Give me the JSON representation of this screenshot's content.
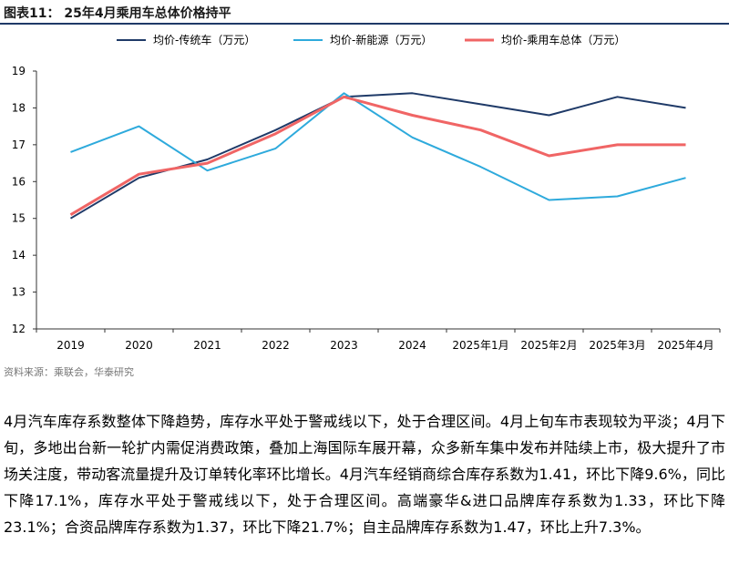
{
  "figure": {
    "title": "图表11： 25年4月乘用车总体价格持平",
    "source": "资料来源：乘联会，华泰研究"
  },
  "colors": {
    "series1": "#1f3a68",
    "series2": "#2eaadc",
    "series3": "#f06565",
    "axis": "#333333"
  },
  "chart_data": {
    "type": "line",
    "categories": [
      "2019",
      "2020",
      "2021",
      "2022",
      "2023",
      "2024",
      "2025年1月",
      "2025年2月",
      "2025年3月",
      "2025年4月"
    ],
    "series": [
      {
        "name": "均价-传统车（万元）",
        "values": [
          15.0,
          16.1,
          16.6,
          17.4,
          18.3,
          18.4,
          18.1,
          17.8,
          18.3,
          18.0
        ]
      },
      {
        "name": "均价-新能源（万元）",
        "values": [
          16.8,
          17.5,
          16.3,
          16.9,
          18.4,
          17.2,
          16.4,
          15.5,
          15.6,
          16.1
        ]
      },
      {
        "name": "均价-乘用车总体（万元）",
        "values": [
          15.1,
          16.2,
          16.5,
          17.3,
          18.3,
          17.8,
          17.4,
          16.7,
          17.0,
          17.0
        ]
      }
    ],
    "yticks": [
      12,
      13,
      14,
      15,
      16,
      17,
      18,
      19
    ],
    "ylim": [
      12,
      19
    ],
    "legend": "top"
  },
  "body": {
    "paragraph": "4月汽车库存系数整体下降趋势，库存水平处于警戒线以下，处于合理区间。4月上旬车市表现较为平淡；4月下旬，多地出台新一轮扩内需促消费政策，叠加上海国际车展开幕，众多新车集中发布并陆续上市，极大提升了市场关注度，带动客流量提升及订单转化率环比增长。4月汽车经销商综合库存系数为1.41，环比下降9.6%，同比下降17.1%，库存水平处于警戒线以下，处于合理区间。高端豪华&进口品牌库存系数为1.33，环比下降23.1%；合资品牌库存系数为1.37，环比下降21.7%；自主品牌库存系数为1.47，环比上升7.3%。"
  }
}
